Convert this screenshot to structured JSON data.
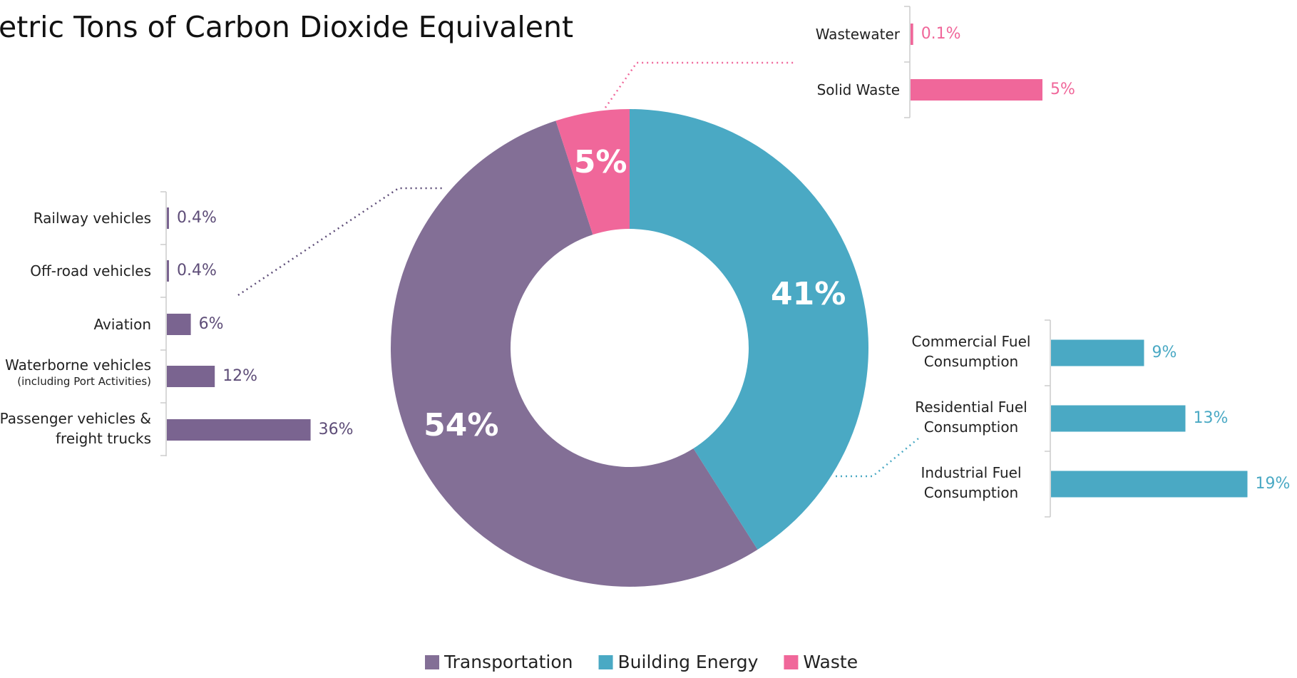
{
  "chart_data": {
    "type": "donut",
    "title": "etric Tons of Carbon Dioxide Equivalent",
    "categories": [
      "Transportation",
      "Building Energy",
      "Waste"
    ],
    "values": [
      54,
      41,
      5
    ],
    "value_labels": [
      "54%",
      "41%",
      "5%"
    ],
    "colors": [
      "#836f96",
      "#4aa9c4",
      "#f0679a"
    ],
    "breakdowns": [
      {
        "categories": [
          "Railway vehicles",
          "Off-road vehicles",
          "Aviation",
          "Waterborne vehicles",
          "Passenger vehicles & freight trucks"
        ],
        "notes": [
          null,
          null,
          null,
          "(including Port Activities)",
          null
        ],
        "values": [
          0.4,
          0.4,
          6,
          12,
          36
        ],
        "value_labels": [
          "0.4%",
          "0.4%",
          "6%",
          "12%",
          "36%"
        ]
      },
      {
        "categories": [
          "Commercial Fuel Consumption",
          "Residential Fuel Consumption",
          "Industrial Fuel Consumption"
        ],
        "values": [
          9,
          13,
          19
        ],
        "value_labels": [
          "9%",
          "13%",
          "19%"
        ]
      },
      {
        "categories": [
          "Wastewater",
          "Solid Waste"
        ],
        "values": [
          0.1,
          5
        ],
        "value_labels": [
          "0.1%",
          "5%"
        ]
      }
    ]
  }
}
